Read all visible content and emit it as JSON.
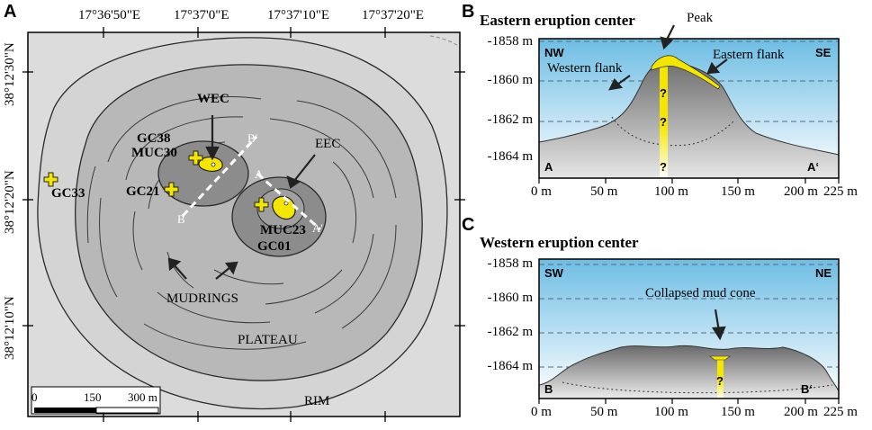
{
  "panel_a": {
    "letter": "A",
    "coords_top": [
      "17°36'50\"E",
      "17°37'0\"E",
      "17°37'10\"E",
      "17°37'20\"E"
    ],
    "coords_left": [
      "38°12'30\"N",
      "38°12'20\"N",
      "38°12'10\"N"
    ],
    "labels": {
      "wec": "WEC",
      "eec": "EEC",
      "gc38": "GC38",
      "muc30": "MUC30",
      "gc21": "GC21",
      "gc33": "GC33",
      "muc23": "MUC23",
      "gc01": "GC01",
      "mudrings": "MUDRINGS",
      "plateau": "PLATEAU",
      "rim": "RIM"
    },
    "profile_marks": {
      "a": "A",
      "a_prime": "A'",
      "b": "B",
      "b_prime": "B'"
    },
    "scale": [
      "0",
      "150",
      "300 m"
    ]
  },
  "panel_b": {
    "letter": "B",
    "title": "Eastern eruption center",
    "y_ticks": [
      "-1858 m",
      "-1860 m",
      "-1862 m",
      "-1864 m"
    ],
    "x_ticks": [
      "0 m",
      "50 m",
      "100 m",
      "150 m",
      "200 m",
      "225 m"
    ],
    "dir_left": "NW",
    "dir_right": "SE",
    "end_left": "A",
    "end_right": "A‘",
    "annotations": {
      "peak": "Peak",
      "western_flank": "Western flank",
      "eastern_flank": "Eastern flank"
    },
    "qmarks": [
      "?",
      "?",
      "?"
    ]
  },
  "panel_c": {
    "letter": "C",
    "title": "Western eruption center",
    "y_ticks": [
      "-1858 m",
      "-1860 m",
      "-1862 m",
      "-1864 m"
    ],
    "x_ticks": [
      "0 m",
      "50 m",
      "100 m",
      "150 m",
      "200 m",
      "225 m"
    ],
    "dir_left": "SW",
    "dir_right": "NE",
    "end_left": "B",
    "end_right": "B‘",
    "annotations": {
      "collapsed": "Collapsed mud cone"
    },
    "qmarks": [
      "?"
    ]
  },
  "colors": {
    "yellow": "#f5e600",
    "flat": "#dcdcdc",
    "plateau": "#b4b4b4",
    "cone": "#8c8c8c",
    "water": "#7fc4e6"
  }
}
